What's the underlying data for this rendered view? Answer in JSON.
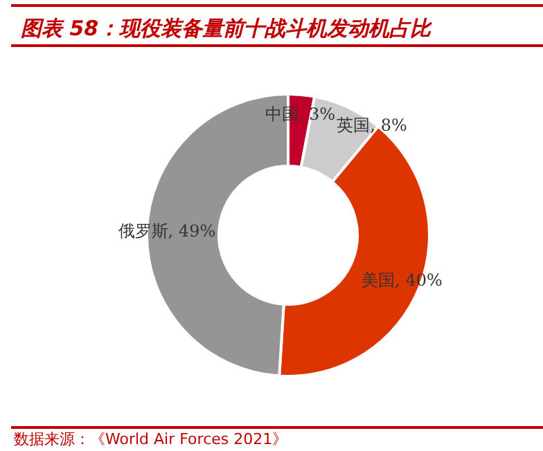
{
  "chart_data": {
    "type": "donut",
    "title": "图表 58：现役装备量前十战斗机发动机占比",
    "categories": [
      "中国",
      "英国",
      "美国",
      "俄罗斯"
    ],
    "values": [
      3,
      8,
      40,
      49
    ],
    "colors": [
      "#c0002a",
      "#cccccc",
      "#dd3500",
      "#959595"
    ],
    "value_labels": [
      "3%",
      "8%",
      "40%",
      "49%"
    ],
    "annotations": [
      "数据来源：《World Air Forces 2021》"
    ],
    "legend": false
  }
}
